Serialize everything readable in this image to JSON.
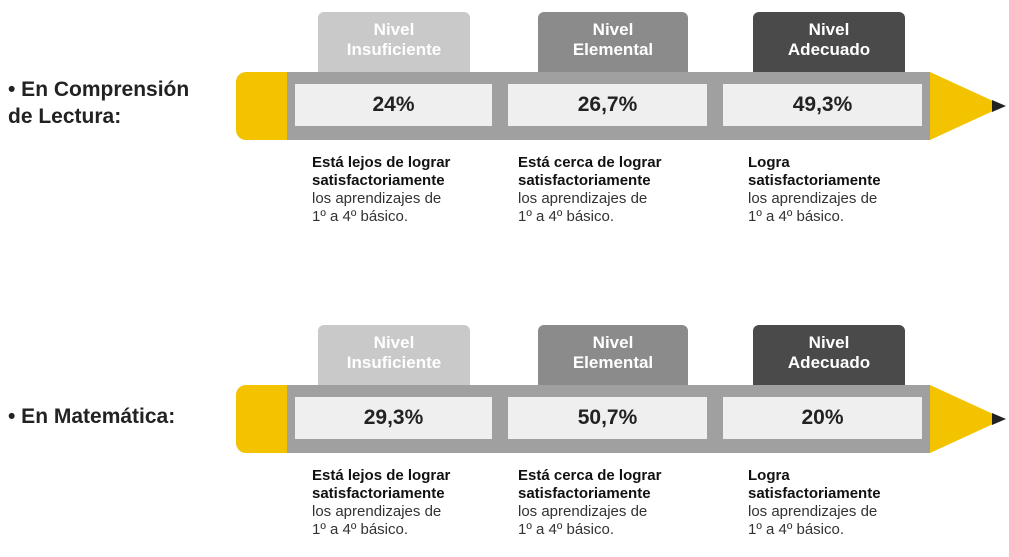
{
  "sections": [
    {
      "label": [
        "• En Comprensión",
        "de Lectura:"
      ],
      "levels": [
        {
          "title": [
            "Nivel",
            "Insuficiente"
          ],
          "percent": "24%",
          "bold": [
            "Está lejos de lograr",
            "satisfactoriamente"
          ],
          "text": [
            "los aprendizajes de",
            "1º a 4º básico."
          ]
        },
        {
          "title": [
            "Nivel",
            "Elemental"
          ],
          "percent": "26,7%",
          "bold": [
            "Está cerca de lograr",
            "satisfactoriamente"
          ],
          "text": [
            "los aprendizajes de",
            "1º a 4º básico."
          ]
        },
        {
          "title": [
            "Nivel",
            "Adecuado"
          ],
          "percent": "49,3%",
          "bold": [
            "Logra",
            "satisfactoriamente"
          ],
          "text": [
            "los aprendizajes de",
            "1º a 4º básico."
          ]
        }
      ]
    },
    {
      "label": [
        "• En Matemática:"
      ],
      "levels": [
        {
          "title": [
            "Nivel",
            "Insuficiente"
          ],
          "percent": "29,3%",
          "bold": [
            "Está lejos de lograr",
            "satisfactoriamente"
          ],
          "text": [
            "los aprendizajes de",
            "1º a 4º básico."
          ]
        },
        {
          "title": [
            "Nivel",
            "Elemental"
          ],
          "percent": "50,7%",
          "bold": [
            "Está cerca de lograr",
            "satisfactoriamente"
          ],
          "text": [
            "los aprendizajes de",
            "1º a 4º básico."
          ]
        },
        {
          "title": [
            "Nivel",
            "Adecuado"
          ],
          "percent": "20%",
          "bold": [
            "Logra",
            "satisfactoriamente"
          ],
          "text": [
            "los aprendizajes de",
            "1º a 4º básico."
          ]
        }
      ]
    }
  ]
}
